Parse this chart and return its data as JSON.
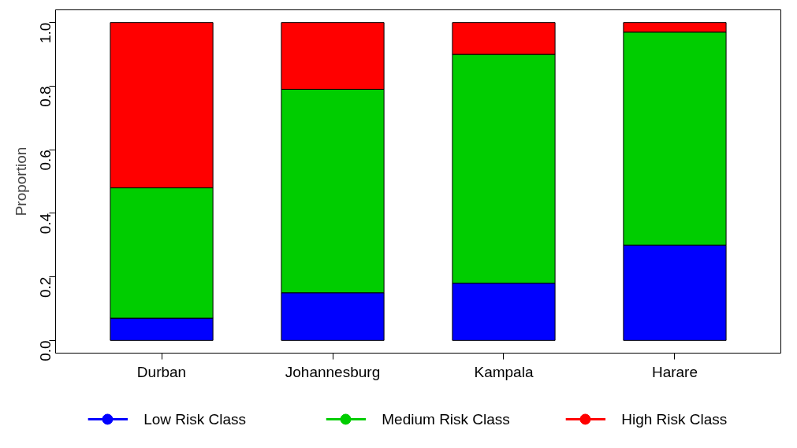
{
  "chart_data": {
    "type": "bar",
    "stacked": true,
    "ylabel": "Proportion",
    "categories": [
      "Durban",
      "Johannesburg",
      "Kampala",
      "Harare"
    ],
    "series": [
      {
        "name": "Low Risk Class",
        "color": "#0000ff",
        "values": [
          0.07,
          0.15,
          0.18,
          0.3
        ]
      },
      {
        "name": "Medium Risk Class",
        "color": "#00cd00",
        "values": [
          0.41,
          0.64,
          0.72,
          0.67
        ]
      },
      {
        "name": "High Risk Class",
        "color": "#ff0000",
        "values": [
          0.52,
          0.21,
          0.1,
          0.03
        ]
      }
    ],
    "ylim": [
      -0.04,
      1.04
    ],
    "yticks": [
      {
        "value": 0,
        "label": "0.0"
      },
      {
        "value": 0.2,
        "label": "0.2"
      },
      {
        "value": 0.4,
        "label": "0.4"
      },
      {
        "value": 0.6,
        "label": "0.6"
      },
      {
        "value": 0.8,
        "label": "0.8"
      },
      {
        "value": 1,
        "label": "1.0"
      }
    ],
    "grid": false,
    "legend": "bottom",
    "marker": "circle"
  }
}
